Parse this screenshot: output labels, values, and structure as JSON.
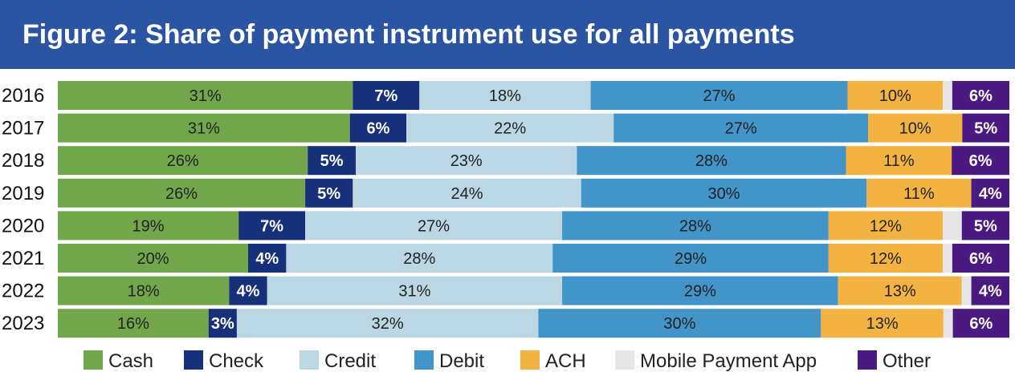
{
  "title": "Figure 2: Share of payment instrument use for all payments",
  "colors": {
    "title_bg": "#2b54a3",
    "Cash": "#72a64a",
    "Check": "#16307a",
    "Credit": "#bcd7e4",
    "Debit": "#4394c9",
    "ACH": "#f2b342",
    "Mobile Payment App": "#e6e6e6",
    "Other": "#4b1a80"
  },
  "chart_data": {
    "type": "bar",
    "orientation": "horizontal",
    "stacked": true,
    "title": "Figure 2: Share of payment instrument use for all payments",
    "categories": [
      "2016",
      "2017",
      "2018",
      "2019",
      "2020",
      "2021",
      "2022",
      "2023"
    ],
    "series": [
      {
        "name": "Cash",
        "values": [
          31,
          31,
          26,
          26,
          19,
          20,
          18,
          16
        ],
        "labels": [
          "31%",
          "31%",
          "26%",
          "26%",
          "19%",
          "20%",
          "18%",
          "16%"
        ]
      },
      {
        "name": "Check",
        "values": [
          7,
          6,
          5,
          5,
          7,
          4,
          4,
          3
        ],
        "labels": [
          "7%",
          "6%",
          "5%",
          "5%",
          "7%",
          "4%",
          "4%",
          "3%"
        ]
      },
      {
        "name": "Credit",
        "values": [
          18,
          22,
          23,
          24,
          27,
          28,
          31,
          32
        ],
        "labels": [
          "18%",
          "22%",
          "23%",
          "24%",
          "27%",
          "28%",
          "31%",
          "32%"
        ]
      },
      {
        "name": "Debit",
        "values": [
          27,
          27,
          28,
          30,
          28,
          29,
          29,
          30
        ],
        "labels": [
          "27%",
          "27%",
          "28%",
          "30%",
          "28%",
          "29%",
          "29%",
          "30%"
        ]
      },
      {
        "name": "ACH",
        "values": [
          10,
          10,
          11,
          11,
          12,
          12,
          13,
          13
        ],
        "labels": [
          "10%",
          "10%",
          "11%",
          "11%",
          "12%",
          "12%",
          "13%",
          "13%"
        ]
      },
      {
        "name": "Mobile Payment App",
        "values": [
          1,
          0,
          0,
          0,
          2,
          1,
          1,
          1
        ],
        "labels": [
          "",
          "",
          "",
          "",
          "",
          "",
          "",
          ""
        ]
      },
      {
        "name": "Other",
        "values": [
          6,
          5,
          6,
          4,
          5,
          6,
          4,
          6
        ],
        "labels": [
          "6%",
          "5%",
          "6%",
          "4%",
          "5%",
          "6%",
          "4%",
          "6%"
        ]
      }
    ],
    "xlim": [
      0,
      100
    ],
    "grid": false,
    "legend": "bottom"
  }
}
